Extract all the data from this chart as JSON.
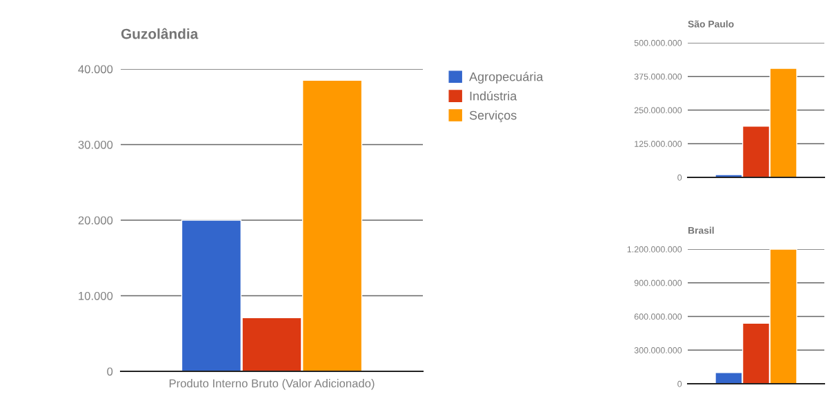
{
  "chart_data": [
    {
      "type": "bar",
      "title": "Guzolândia",
      "categories": [
        "Produto Interno Bruto (Valor Adicionado)"
      ],
      "series": [
        {
          "name": "Agropecuária",
          "color": "#3366cc",
          "values": [
            20000
          ]
        },
        {
          "name": "Indústria",
          "color": "#dc3912",
          "values": [
            7100
          ]
        },
        {
          "name": "Serviços",
          "color": "#ff9900",
          "values": [
            38500
          ]
        }
      ],
      "ylim": [
        0,
        40000
      ],
      "yticks": [
        0,
        {
          "value": 10000,
          "label": "10.000"
        },
        {
          "value": 20000,
          "label": "20.000"
        },
        {
          "value": 30000,
          "label": "30.000"
        },
        {
          "value": 40000,
          "label": "40.000"
        }
      ],
      "grid": "y",
      "legend": "right"
    },
    {
      "type": "bar",
      "title": "São Paulo",
      "categories": [
        null
      ],
      "series": [
        {
          "color": "#3366cc",
          "values": [
            10000000
          ]
        },
        {
          "color": "#dc3912",
          "values": [
            190000000
          ]
        },
        {
          "color": "#ff9900",
          "values": [
            405000000
          ]
        }
      ],
      "ylim": [
        0,
        500000000
      ],
      "yticks": [
        0,
        {
          "value": 125000000,
          "label": "125.000.000"
        },
        {
          "value": 250000000,
          "label": "250.000.000"
        },
        {
          "value": 375000000,
          "label": "375.000.000"
        },
        {
          "value": 500000000,
          "label": "500.000.000"
        }
      ],
      "grid": "y"
    },
    {
      "type": "bar",
      "title": "Brasil",
      "categories": [
        null
      ],
      "series": [
        {
          "color": "#3366cc",
          "values": [
            100000000
          ]
        },
        {
          "color": "#dc3912",
          "values": [
            540000000
          ]
        },
        {
          "color": "#ff9900",
          "values": [
            1200000000
          ]
        }
      ],
      "ylim": [
        0,
        1200000000
      ],
      "yticks": [
        0,
        {
          "value": 300000000,
          "label": "300.000.000"
        },
        {
          "value": 600000000,
          "label": "600.000.000"
        },
        {
          "value": 900000000,
          "label": "900.000.000"
        },
        {
          "value": 1200000000,
          "label": "1.200.000.000"
        }
      ],
      "grid": "y"
    }
  ]
}
